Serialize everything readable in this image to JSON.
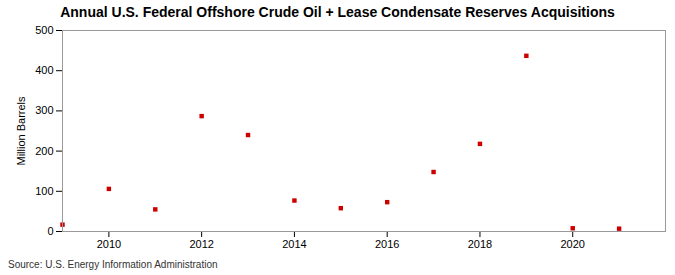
{
  "chart_data": {
    "type": "scatter",
    "title": "Annual U.S. Federal Offshore Crude Oil + Lease Condensate Reserves Acquisitions",
    "y_label": "Million Barrels",
    "source": "Source: U.S. Energy Information Administration",
    "x": [
      2009,
      2010,
      2011,
      2012,
      2013,
      2014,
      2015,
      2016,
      2017,
      2018,
      2019,
      2020,
      2021
    ],
    "values": [
      17,
      106,
      55,
      287,
      240,
      77,
      58,
      73,
      148,
      218,
      437,
      8,
      7
    ],
    "color": "#cc0000",
    "marker": "square",
    "xlim": [
      2009,
      2022
    ],
    "xticks": [
      2010,
      2012,
      2014,
      2016,
      2018,
      2020
    ],
    "ylim": [
      0,
      500
    ],
    "yticks": [
      0,
      100,
      200,
      300,
      400,
      500
    ],
    "grid": false
  }
}
